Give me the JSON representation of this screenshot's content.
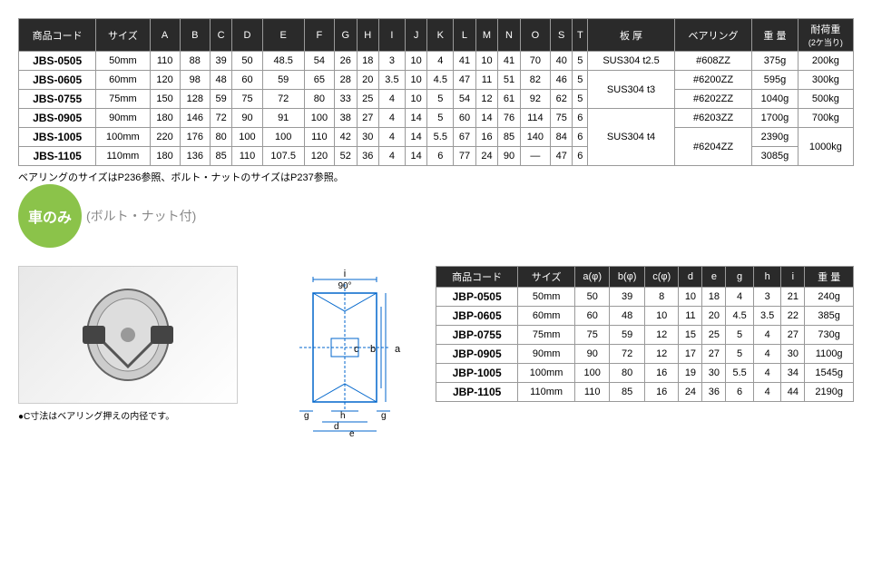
{
  "table1": {
    "headers": [
      "商品コード",
      "サイズ",
      "A",
      "B",
      "C",
      "D",
      "E",
      "F",
      "G",
      "H",
      "I",
      "J",
      "K",
      "L",
      "M",
      "N",
      "O",
      "S",
      "T",
      "板 厚",
      "ベアリング",
      "重 量",
      "耐荷重(2ケ当り)"
    ],
    "rows": [
      {
        "code": "JBS-0505",
        "size": "50mm",
        "A": "110",
        "B": "88",
        "C": "39",
        "D": "50",
        "E": "48.5",
        "F": "54",
        "G": "26",
        "H": "18",
        "I": "3",
        "J": "10",
        "K": "4",
        "L": "41",
        "M": "10",
        "N": "41",
        "O": "70",
        "S": "40",
        "T": "5",
        "thick": "SUS304 t2.5",
        "bearing": "#608ZZ",
        "weight": "375g",
        "load": "200kg"
      },
      {
        "code": "JBS-0605",
        "size": "60mm",
        "A": "120",
        "B": "98",
        "C": "48",
        "D": "60",
        "E": "59",
        "F": "65",
        "G": "28",
        "H": "20",
        "I": "3.5",
        "J": "10",
        "K": "4.5",
        "L": "47",
        "M": "11",
        "N": "51",
        "O": "82",
        "S": "46",
        "T": "5",
        "thick": "SUS304 t3",
        "bearing": "#6200ZZ",
        "weight": "595g",
        "load": "300kg"
      },
      {
        "code": "JBS-0755",
        "size": "75mm",
        "A": "150",
        "B": "128",
        "C": "59",
        "D": "75",
        "E": "72",
        "F": "80",
        "G": "33",
        "H": "25",
        "I": "4",
        "J": "10",
        "K": "5",
        "L": "54",
        "M": "12",
        "N": "61",
        "O": "92",
        "S": "62",
        "T": "5",
        "thick": "",
        "bearing": "#6202ZZ",
        "weight": "1040g",
        "load": "500kg"
      },
      {
        "code": "JBS-0905",
        "size": "90mm",
        "A": "180",
        "B": "146",
        "C": "72",
        "D": "90",
        "E": "91",
        "F": "100",
        "G": "38",
        "H": "27",
        "I": "4",
        "J": "14",
        "K": "5",
        "L": "60",
        "M": "14",
        "N": "76",
        "O": "114",
        "S": "75",
        "T": "6",
        "thick": "SUS304 t4",
        "bearing": "#6203ZZ",
        "weight": "1700g",
        "load": "700kg"
      },
      {
        "code": "JBS-1005",
        "size": "100mm",
        "A": "220",
        "B": "176",
        "C": "80",
        "D": "100",
        "E": "100",
        "F": "110",
        "G": "42",
        "H": "30",
        "I": "4",
        "J": "14",
        "K": "5.5",
        "L": "67",
        "M": "16",
        "N": "85",
        "O": "140",
        "S": "84",
        "T": "6",
        "thick": "",
        "bearing": "#6204ZZ",
        "weight": "2390g",
        "load": "1000kg"
      },
      {
        "code": "JBS-1105",
        "size": "110mm",
        "A": "180",
        "B": "136",
        "C": "85",
        "D": "110",
        "E": "107.5",
        "F": "120",
        "G": "52",
        "H": "36",
        "I": "4",
        "J": "14",
        "K": "6",
        "L": "77",
        "M": "24",
        "N": "90",
        "O": "—",
        "S": "47",
        "T": "6",
        "thick": "",
        "bearing": "",
        "weight": "3085g",
        "load": ""
      }
    ],
    "thick_spans": [
      {
        "start": 0,
        "span": 1,
        "val": "SUS304 t2.5"
      },
      {
        "start": 1,
        "span": 2,
        "val": "SUS304 t3"
      },
      {
        "start": 3,
        "span": 3,
        "val": "SUS304 t4"
      }
    ],
    "bearing_spans": [
      {
        "start": 4,
        "span": 2,
        "val": "#6204ZZ"
      }
    ],
    "load_spans": [
      {
        "start": 4,
        "span": 2,
        "val": "1000kg"
      }
    ]
  },
  "note1": "ベアリングのサイズはP236参照、ボルト・ナットのサイズはP237参照。",
  "badge": {
    "title": "車のみ",
    "sub": "(ボルト・ナット付)"
  },
  "img_note": "●C寸法はベアリング押えの内径です。",
  "diagram": {
    "angle": "90°",
    "labels": [
      "i",
      "a",
      "b",
      "c",
      "d",
      "e",
      "g",
      "h"
    ]
  },
  "table2": {
    "headers": [
      "商品コード",
      "サイズ",
      "a(φ)",
      "b(φ)",
      "c(φ)",
      "d",
      "e",
      "g",
      "h",
      "i",
      "重 量"
    ],
    "rows": [
      {
        "code": "JBP-0505",
        "size": "50mm",
        "a": "50",
        "b": "39",
        "c": "8",
        "d": "10",
        "e": "18",
        "g": "4",
        "h": "3",
        "i": "21",
        "weight": "240g"
      },
      {
        "code": "JBP-0605",
        "size": "60mm",
        "a": "60",
        "b": "48",
        "c": "10",
        "d": "11",
        "e": "20",
        "g": "4.5",
        "h": "3.5",
        "i": "22",
        "weight": "385g"
      },
      {
        "code": "JBP-0755",
        "size": "75mm",
        "a": "75",
        "b": "59",
        "c": "12",
        "d": "15",
        "e": "25",
        "g": "5",
        "h": "4",
        "i": "27",
        "weight": "730g"
      },
      {
        "code": "JBP-0905",
        "size": "90mm",
        "a": "90",
        "b": "72",
        "c": "12",
        "d": "17",
        "e": "27",
        "g": "5",
        "h": "4",
        "i": "30",
        "weight": "1100g"
      },
      {
        "code": "JBP-1005",
        "size": "100mm",
        "a": "100",
        "b": "80",
        "c": "16",
        "d": "19",
        "e": "30",
        "g": "5.5",
        "h": "4",
        "i": "34",
        "weight": "1545g"
      },
      {
        "code": "JBP-1105",
        "size": "110mm",
        "a": "110",
        "b": "85",
        "c": "16",
        "d": "24",
        "e": "36",
        "g": "6",
        "h": "4",
        "i": "44",
        "weight": "2190g"
      }
    ]
  }
}
